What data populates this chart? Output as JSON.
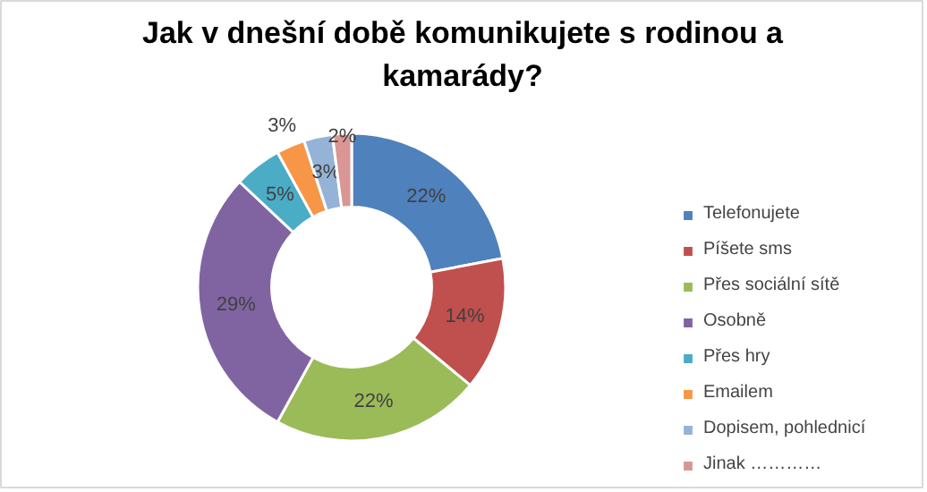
{
  "chart_data": {
    "type": "donut",
    "title": "Jak v dnešní době komunikujete s rodinou a kamarády?",
    "categories": [
      "Telefonujete",
      "Píšete sms",
      "Přes sociální sítě",
      "Osobně",
      "Přes hry",
      "Emailem",
      "Dopisem, pohlednicí",
      "Jinak …………"
    ],
    "values": [
      22,
      14,
      22,
      29,
      5,
      3,
      3,
      2
    ],
    "colors": [
      "#4f81bd",
      "#c0504d",
      "#9bbb59",
      "#8064a2",
      "#4bacc6",
      "#f79646",
      "#95b3d7",
      "#d99694"
    ],
    "value_labels": [
      "22%",
      "14%",
      "22%",
      "29%",
      "5%",
      "3%",
      "3%",
      "2%"
    ],
    "legend": "right"
  }
}
